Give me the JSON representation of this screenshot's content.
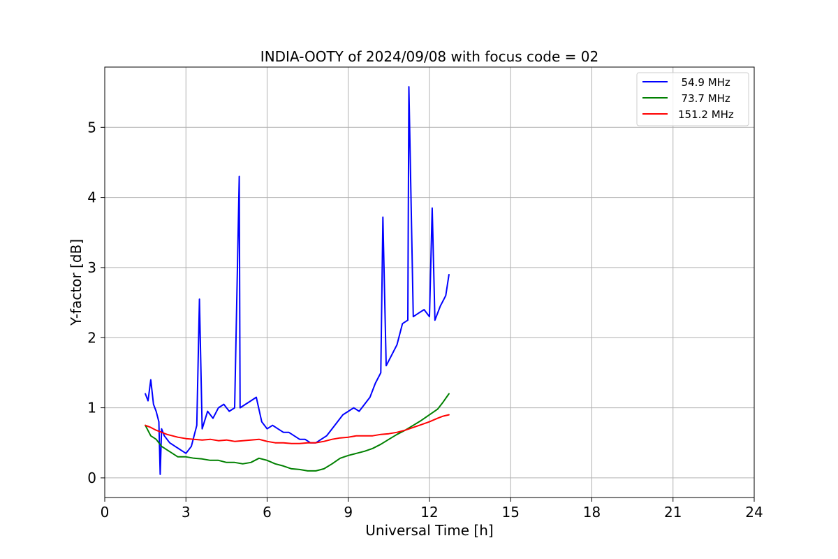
{
  "chart_data": {
    "type": "line",
    "title": "INDIA-OOTY of 2024/09/08 with focus code = 02",
    "xlabel": "Universal Time [h]",
    "ylabel": "Y-factor [dB]",
    "xlim": [
      0,
      24
    ],
    "ylim": [
      -0.28,
      5.86
    ],
    "xticks": [
      0,
      3,
      6,
      9,
      12,
      15,
      18,
      21,
      24
    ],
    "yticks": [
      0,
      1,
      2,
      3,
      4,
      5
    ],
    "grid": true,
    "legend_position": "top-right",
    "series": [
      {
        "name": "  54.9 MHz",
        "color": "#0000ff",
        "x": [
          1.5,
          1.6,
          1.7,
          1.8,
          1.9,
          2.0,
          2.05,
          2.1,
          2.2,
          2.4,
          2.6,
          2.8,
          3.0,
          3.2,
          3.4,
          3.5,
          3.6,
          3.8,
          4.0,
          4.2,
          4.4,
          4.6,
          4.8,
          4.97,
          5.0,
          5.2,
          5.4,
          5.6,
          5.8,
          6.0,
          6.2,
          6.4,
          6.6,
          6.8,
          7.0,
          7.2,
          7.4,
          7.6,
          7.8,
          8.0,
          8.2,
          8.4,
          8.6,
          8.8,
          9.0,
          9.2,
          9.4,
          9.6,
          9.8,
          10.0,
          10.2,
          10.28,
          10.4,
          10.6,
          10.8,
          10.9,
          11.0,
          11.2,
          11.24,
          11.4,
          11.6,
          11.8,
          12.0,
          12.1,
          12.2,
          12.4,
          12.6,
          12.72
        ],
        "y": [
          1.2,
          1.1,
          1.4,
          1.05,
          0.95,
          0.8,
          0.05,
          0.7,
          0.6,
          0.5,
          0.45,
          0.4,
          0.35,
          0.45,
          0.75,
          2.55,
          0.7,
          0.95,
          0.85,
          1.0,
          1.05,
          0.95,
          1.0,
          4.3,
          1.0,
          1.05,
          1.1,
          1.15,
          0.8,
          0.7,
          0.75,
          0.7,
          0.65,
          0.65,
          0.6,
          0.55,
          0.55,
          0.5,
          0.5,
          0.55,
          0.6,
          0.7,
          0.8,
          0.9,
          0.95,
          1.0,
          0.95,
          1.05,
          1.15,
          1.35,
          1.5,
          3.72,
          1.6,
          1.75,
          1.9,
          2.05,
          2.2,
          2.25,
          5.58,
          2.3,
          2.35,
          2.4,
          2.3,
          3.85,
          2.25,
          2.45,
          2.6,
          2.9
        ]
      },
      {
        "name": "  73.7 MHz",
        "color": "#008000",
        "x": [
          1.5,
          1.7,
          1.9,
          2.1,
          2.3,
          2.5,
          2.7,
          3.0,
          3.3,
          3.6,
          3.9,
          4.2,
          4.5,
          4.8,
          5.1,
          5.4,
          5.7,
          6.0,
          6.3,
          6.6,
          6.9,
          7.2,
          7.5,
          7.8,
          8.1,
          8.4,
          8.7,
          9.0,
          9.3,
          9.6,
          9.9,
          10.2,
          10.5,
          10.8,
          11.1,
          11.4,
          11.7,
          12.0,
          12.3,
          12.5,
          12.72
        ],
        "y": [
          0.75,
          0.6,
          0.55,
          0.45,
          0.4,
          0.35,
          0.3,
          0.3,
          0.28,
          0.27,
          0.25,
          0.25,
          0.22,
          0.22,
          0.2,
          0.22,
          0.28,
          0.25,
          0.2,
          0.17,
          0.13,
          0.12,
          0.1,
          0.1,
          0.13,
          0.2,
          0.28,
          0.32,
          0.35,
          0.38,
          0.42,
          0.48,
          0.55,
          0.62,
          0.68,
          0.75,
          0.82,
          0.9,
          0.98,
          1.08,
          1.2
        ]
      },
      {
        "name": "151.2 MHz",
        "color": "#ff0000",
        "x": [
          1.5,
          1.7,
          1.9,
          2.1,
          2.3,
          2.5,
          2.7,
          3.0,
          3.3,
          3.6,
          3.9,
          4.2,
          4.5,
          4.8,
          5.1,
          5.4,
          5.7,
          6.0,
          6.3,
          6.6,
          6.9,
          7.2,
          7.5,
          7.8,
          8.1,
          8.4,
          8.7,
          9.0,
          9.3,
          9.6,
          9.9,
          10.2,
          10.5,
          10.8,
          11.1,
          11.4,
          11.7,
          12.0,
          12.3,
          12.5,
          12.72
        ],
        "y": [
          0.75,
          0.72,
          0.68,
          0.65,
          0.62,
          0.6,
          0.58,
          0.56,
          0.55,
          0.54,
          0.55,
          0.53,
          0.54,
          0.52,
          0.53,
          0.54,
          0.55,
          0.52,
          0.5,
          0.5,
          0.49,
          0.49,
          0.5,
          0.5,
          0.52,
          0.55,
          0.57,
          0.58,
          0.6,
          0.6,
          0.6,
          0.62,
          0.63,
          0.65,
          0.68,
          0.72,
          0.76,
          0.8,
          0.85,
          0.88,
          0.9
        ]
      }
    ]
  }
}
